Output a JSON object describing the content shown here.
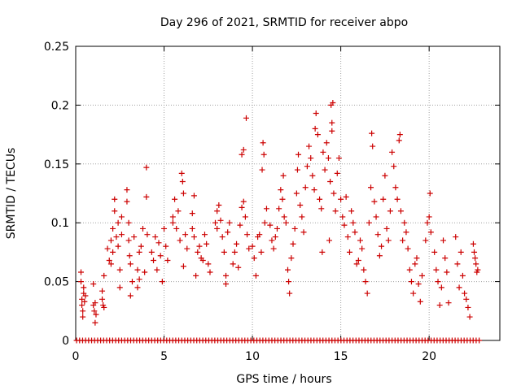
{
  "chart_data": {
    "type": "scatter",
    "title": "Day 296 of 2021, SRMTID for receiver abpo",
    "xlabel": "GPS time / hours",
    "ylabel": "SRMTID / TECUs",
    "xlim": [
      0,
      24
    ],
    "ylim": [
      0,
      0.25
    ],
    "xticks": [
      0,
      5,
      10,
      15,
      20
    ],
    "xtick_labels": [
      "0",
      "5",
      "10",
      "15",
      "20"
    ],
    "yticks": [
      0,
      0.05,
      0.1,
      0.15,
      0.2,
      0.25
    ],
    "ytick_labels": [
      "0",
      "0.05",
      "0.1",
      "0.15",
      "0.2",
      "0.25"
    ],
    "grid": true,
    "marker": "+",
    "color": "#cc0000",
    "series": [
      {
        "name": "SRMTID",
        "points": [
          [
            0.3,
            0.058
          ],
          [
            0.3,
            0.05
          ],
          [
            0.35,
            0.035
          ],
          [
            0.35,
            0.03
          ],
          [
            0.4,
            0.025
          ],
          [
            0.4,
            0.02
          ],
          [
            0.45,
            0.045
          ],
          [
            0.45,
            0.04
          ],
          [
            0.5,
            0.033
          ],
          [
            0.55,
            0.038
          ],
          [
            1.0,
            0.048
          ],
          [
            1.0,
            0.03
          ],
          [
            1.05,
            0.025
          ],
          [
            1.1,
            0.032
          ],
          [
            1.1,
            0.015
          ],
          [
            1.15,
            0.022
          ],
          [
            1.5,
            0.042
          ],
          [
            1.5,
            0.035
          ],
          [
            1.55,
            0.03
          ],
          [
            1.6,
            0.028
          ],
          [
            1.6,
            0.055
          ],
          [
            1.8,
            0.078
          ],
          [
            1.9,
            0.068
          ],
          [
            2.0,
            0.085
          ],
          [
            2.0,
            0.065
          ],
          [
            2.1,
            0.095
          ],
          [
            2.1,
            0.075
          ],
          [
            2.2,
            0.11
          ],
          [
            2.2,
            0.12
          ],
          [
            2.3,
            0.088
          ],
          [
            2.4,
            0.08
          ],
          [
            2.4,
            0.1
          ],
          [
            2.5,
            0.06
          ],
          [
            2.5,
            0.045
          ],
          [
            2.6,
            0.105
          ],
          [
            2.6,
            0.09
          ],
          [
            2.9,
            0.128
          ],
          [
            2.9,
            0.118
          ],
          [
            3.0,
            0.1
          ],
          [
            3.0,
            0.085
          ],
          [
            3.05,
            0.072
          ],
          [
            3.1,
            0.038
          ],
          [
            3.1,
            0.065
          ],
          [
            3.2,
            0.05
          ],
          [
            3.3,
            0.088
          ],
          [
            3.5,
            0.06
          ],
          [
            3.5,
            0.045
          ],
          [
            3.6,
            0.075
          ],
          [
            3.6,
            0.052
          ],
          [
            3.7,
            0.08
          ],
          [
            3.8,
            0.095
          ],
          [
            3.9,
            0.058
          ],
          [
            4.0,
            0.122
          ],
          [
            4.0,
            0.147
          ],
          [
            4.05,
            0.09
          ],
          [
            4.3,
            0.075
          ],
          [
            4.4,
            0.068
          ],
          [
            4.5,
            0.088
          ],
          [
            4.6,
            0.06
          ],
          [
            4.7,
            0.083
          ],
          [
            4.8,
            0.072
          ],
          [
            4.9,
            0.05
          ],
          [
            5.0,
            0.095
          ],
          [
            5.1,
            0.08
          ],
          [
            5.2,
            0.068
          ],
          [
            5.5,
            0.105
          ],
          [
            5.5,
            0.1
          ],
          [
            5.6,
            0.12
          ],
          [
            5.7,
            0.095
          ],
          [
            5.8,
            0.11
          ],
          [
            5.9,
            0.085
          ],
          [
            6.0,
            0.142
          ],
          [
            6.05,
            0.135
          ],
          [
            6.1,
            0.125
          ],
          [
            6.1,
            0.063
          ],
          [
            6.2,
            0.09
          ],
          [
            6.3,
            0.078
          ],
          [
            6.6,
            0.108
          ],
          [
            6.6,
            0.095
          ],
          [
            6.7,
            0.123
          ],
          [
            6.7,
            0.088
          ],
          [
            6.8,
            0.055
          ],
          [
            6.9,
            0.075
          ],
          [
            7.0,
            0.08
          ],
          [
            7.1,
            0.07
          ],
          [
            7.2,
            0.068
          ],
          [
            7.3,
            0.09
          ],
          [
            7.4,
            0.082
          ],
          [
            7.5,
            0.065
          ],
          [
            7.6,
            0.058
          ],
          [
            7.9,
            0.1
          ],
          [
            8.0,
            0.11
          ],
          [
            8.0,
            0.095
          ],
          [
            8.1,
            0.115
          ],
          [
            8.2,
            0.102
          ],
          [
            8.3,
            0.088
          ],
          [
            8.4,
            0.075
          ],
          [
            8.5,
            0.048
          ],
          [
            8.5,
            0.055
          ],
          [
            8.6,
            0.092
          ],
          [
            8.7,
            0.1
          ],
          [
            8.9,
            0.065
          ],
          [
            9.0,
            0.075
          ],
          [
            9.1,
            0.082
          ],
          [
            9.2,
            0.062
          ],
          [
            9.3,
            0.098
          ],
          [
            9.4,
            0.113
          ],
          [
            9.4,
            0.158
          ],
          [
            9.5,
            0.162
          ],
          [
            9.5,
            0.118
          ],
          [
            9.6,
            0.105
          ],
          [
            9.65,
            0.189
          ],
          [
            9.7,
            0.09
          ],
          [
            9.8,
            0.078
          ],
          [
            10.0,
            0.08
          ],
          [
            10.1,
            0.07
          ],
          [
            10.2,
            0.055
          ],
          [
            10.3,
            0.088
          ],
          [
            10.4,
            0.09
          ],
          [
            10.5,
            0.075
          ],
          [
            10.55,
            0.145
          ],
          [
            10.6,
            0.168
          ],
          [
            10.65,
            0.158
          ],
          [
            10.7,
            0.1
          ],
          [
            10.8,
            0.112
          ],
          [
            11.0,
            0.098
          ],
          [
            11.1,
            0.085
          ],
          [
            11.2,
            0.078
          ],
          [
            11.3,
            0.088
          ],
          [
            11.4,
            0.095
          ],
          [
            11.5,
            0.112
          ],
          [
            11.6,
            0.128
          ],
          [
            11.7,
            0.12
          ],
          [
            11.75,
            0.14
          ],
          [
            11.8,
            0.105
          ],
          [
            11.9,
            0.1
          ],
          [
            12.0,
            0.06
          ],
          [
            12.05,
            0.05
          ],
          [
            12.1,
            0.04
          ],
          [
            12.2,
            0.07
          ],
          [
            12.3,
            0.082
          ],
          [
            12.4,
            0.095
          ],
          [
            12.5,
            0.125
          ],
          [
            12.55,
            0.145
          ],
          [
            12.6,
            0.158
          ],
          [
            12.7,
            0.115
          ],
          [
            12.8,
            0.105
          ],
          [
            12.9,
            0.092
          ],
          [
            13.0,
            0.13
          ],
          [
            13.1,
            0.148
          ],
          [
            13.2,
            0.165
          ],
          [
            13.3,
            0.155
          ],
          [
            13.4,
            0.14
          ],
          [
            13.5,
            0.128
          ],
          [
            13.55,
            0.18
          ],
          [
            13.6,
            0.193
          ],
          [
            13.7,
            0.175
          ],
          [
            13.8,
            0.12
          ],
          [
            13.9,
            0.112
          ],
          [
            13.95,
            0.075
          ],
          [
            14.0,
            0.16
          ],
          [
            14.1,
            0.145
          ],
          [
            14.2,
            0.168
          ],
          [
            14.3,
            0.155
          ],
          [
            14.35,
            0.085
          ],
          [
            14.4,
            0.135
          ],
          [
            14.45,
            0.2
          ],
          [
            14.5,
            0.185
          ],
          [
            14.5,
            0.178
          ],
          [
            14.55,
            0.202
          ],
          [
            14.6,
            0.125
          ],
          [
            14.7,
            0.11
          ],
          [
            14.8,
            0.142
          ],
          [
            14.9,
            0.155
          ],
          [
            15.0,
            0.12
          ],
          [
            15.1,
            0.105
          ],
          [
            15.2,
            0.098
          ],
          [
            15.3,
            0.122
          ],
          [
            15.4,
            0.088
          ],
          [
            15.5,
            0.075
          ],
          [
            15.6,
            0.11
          ],
          [
            15.7,
            0.1
          ],
          [
            15.8,
            0.092
          ],
          [
            15.9,
            0.065
          ],
          [
            16.0,
            0.068
          ],
          [
            16.1,
            0.085
          ],
          [
            16.2,
            0.078
          ],
          [
            16.3,
            0.06
          ],
          [
            16.4,
            0.05
          ],
          [
            16.5,
            0.04
          ],
          [
            16.6,
            0.1
          ],
          [
            16.7,
            0.13
          ],
          [
            16.75,
            0.176
          ],
          [
            16.8,
            0.165
          ],
          [
            16.9,
            0.118
          ],
          [
            17.0,
            0.105
          ],
          [
            17.1,
            0.09
          ],
          [
            17.2,
            0.072
          ],
          [
            17.3,
            0.08
          ],
          [
            17.4,
            0.12
          ],
          [
            17.5,
            0.14
          ],
          [
            17.6,
            0.095
          ],
          [
            17.7,
            0.085
          ],
          [
            17.8,
            0.11
          ],
          [
            17.9,
            0.16
          ],
          [
            18.0,
            0.148
          ],
          [
            18.1,
            0.13
          ],
          [
            18.2,
            0.12
          ],
          [
            18.3,
            0.17
          ],
          [
            18.35,
            0.175
          ],
          [
            18.4,
            0.11
          ],
          [
            18.5,
            0.085
          ],
          [
            18.6,
            0.1
          ],
          [
            18.7,
            0.092
          ],
          [
            18.8,
            0.078
          ],
          [
            18.9,
            0.06
          ],
          [
            19.0,
            0.05
          ],
          [
            19.1,
            0.04
          ],
          [
            19.2,
            0.065
          ],
          [
            19.3,
            0.07
          ],
          [
            19.4,
            0.048
          ],
          [
            19.5,
            0.033
          ],
          [
            19.6,
            0.055
          ],
          [
            19.8,
            0.085
          ],
          [
            19.9,
            0.1
          ],
          [
            20.0,
            0.105
          ],
          [
            20.05,
            0.125
          ],
          [
            20.1,
            0.092
          ],
          [
            20.3,
            0.075
          ],
          [
            20.4,
            0.06
          ],
          [
            20.5,
            0.05
          ],
          [
            20.6,
            0.03
          ],
          [
            20.7,
            0.045
          ],
          [
            20.8,
            0.085
          ],
          [
            20.9,
            0.07
          ],
          [
            21.0,
            0.058
          ],
          [
            21.1,
            0.032
          ],
          [
            21.5,
            0.088
          ],
          [
            21.6,
            0.065
          ],
          [
            21.7,
            0.045
          ],
          [
            21.8,
            0.075
          ],
          [
            21.9,
            0.055
          ],
          [
            22.0,
            0.04
          ],
          [
            22.1,
            0.035
          ],
          [
            22.2,
            0.028
          ],
          [
            22.3,
            0.02
          ],
          [
            22.5,
            0.082
          ],
          [
            22.55,
            0.075
          ],
          [
            22.6,
            0.07
          ],
          [
            22.65,
            0.065
          ],
          [
            22.7,
            0.058
          ],
          [
            22.75,
            0.06
          ]
        ]
      }
    ],
    "baseline_zero_points": {
      "y": 0,
      "x_start": 0.05,
      "x_end": 22.9,
      "x_step": 0.17
    }
  }
}
